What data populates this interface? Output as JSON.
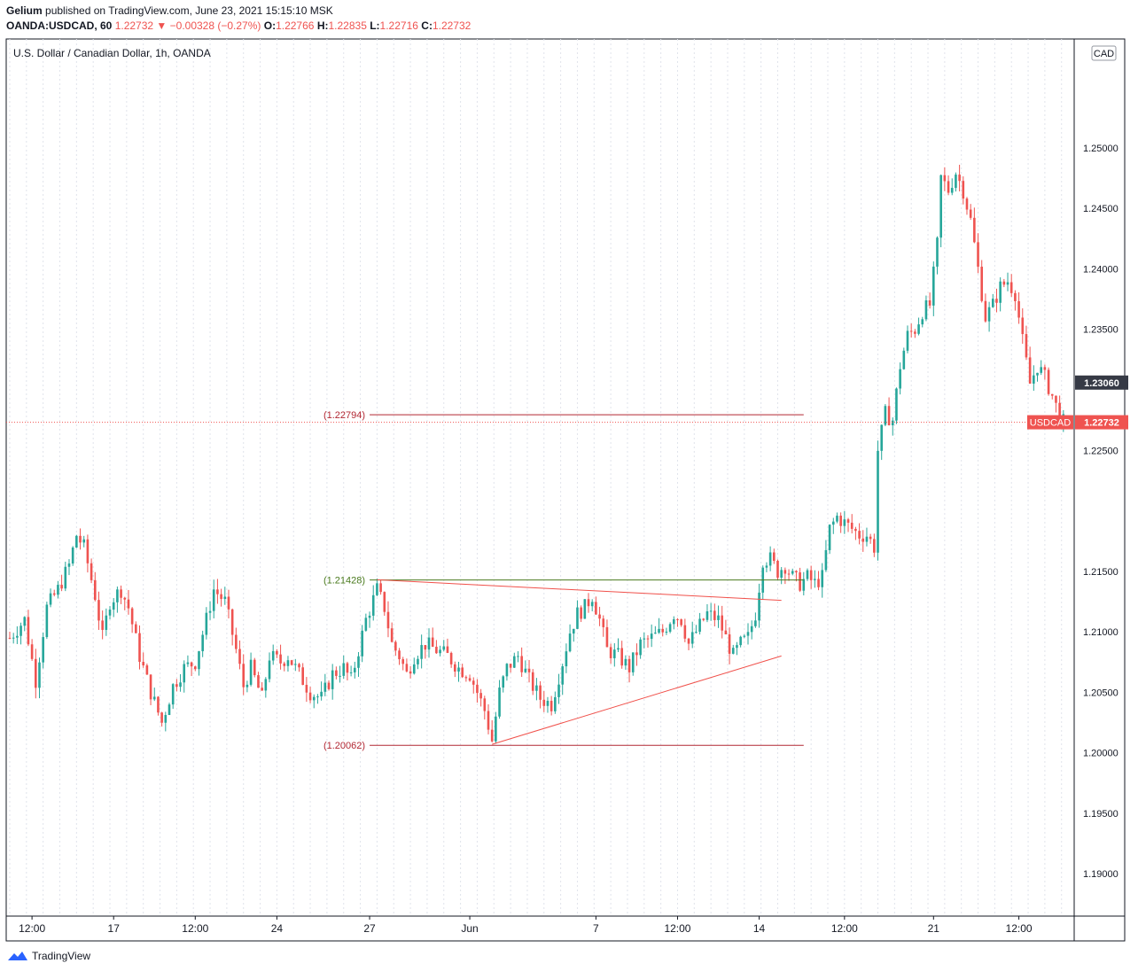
{
  "header": {
    "author": "Gelium",
    "published": "published on TradingView.com, June 23, 2021 15:15:10 MSK",
    "symbol": "OANDA:USDCAD, 60",
    "last": "1.22732",
    "change": "▼ −0.00328 (−0.27%)",
    "o_label": "O:",
    "o": "1.22766",
    "h_label": "H:",
    "h": "1.22835",
    "l_label": "L:",
    "l": "1.22716",
    "c_label": "C:",
    "c": "1.22732"
  },
  "legend": "U.S. Dollar / Canadian Dollar, 1h, OANDA",
  "footer": "TradingView",
  "colors": {
    "up": "#26a69a",
    "down": "#ef5350",
    "grid": "#e0e3eb",
    "level": "#b22833",
    "green_level": "#4a7a1e",
    "trend": "#f0504a"
  },
  "chart_data": {
    "type": "candlestick",
    "title": "U.S. Dollar / Canadian Dollar, 1h, OANDA",
    "currency": "CAD",
    "ylim": [
      1.1865,
      1.259
    ],
    "y_ticks": [
      1.19,
      1.195,
      1.2,
      1.205,
      1.21,
      1.215,
      1.2225,
      1.225,
      1.235,
      1.24,
      1.245,
      1.25
    ],
    "y_tick_labels": [
      "1.19000",
      "1.19500",
      "1.20000",
      "1.20500",
      "1.21000",
      "1.21500",
      "",
      "1.22500",
      "1.23500",
      "1.24000",
      "1.24500",
      "1.25000"
    ],
    "x_labels": [
      "12:00",
      "17",
      "12:00",
      "24",
      "27",
      "Jun",
      "7",
      "12:00",
      "14",
      "12:00",
      "21",
      "12:00"
    ],
    "x_label_index": [
      6,
      28,
      50,
      72,
      97,
      124,
      158,
      180,
      202,
      225,
      249,
      272
    ],
    "price_path": [
      [
        0,
        1.2095
      ],
      [
        4,
        1.211
      ],
      [
        7,
        1.206
      ],
      [
        10,
        1.212
      ],
      [
        13,
        1.2135
      ],
      [
        16,
        1.2155
      ],
      [
        18,
        1.218
      ],
      [
        20,
        1.217
      ],
      [
        23,
        1.213
      ],
      [
        25,
        1.2095
      ],
      [
        27,
        1.2125
      ],
      [
        30,
        1.2135
      ],
      [
        32,
        1.212
      ],
      [
        35,
        1.208
      ],
      [
        38,
        1.205
      ],
      [
        41,
        1.2025
      ],
      [
        44,
        1.2055
      ],
      [
        47,
        1.207
      ],
      [
        50,
        1.2075
      ],
      [
        53,
        1.211
      ],
      [
        55,
        1.2135
      ],
      [
        58,
        1.2125
      ],
      [
        61,
        1.2085
      ],
      [
        63,
        1.2055
      ],
      [
        65,
        1.207
      ],
      [
        68,
        1.2045
      ],
      [
        70,
        1.208
      ],
      [
        73,
        1.2075
      ],
      [
        75,
        1.208
      ],
      [
        78,
        1.2065
      ],
      [
        81,
        1.205
      ],
      [
        84,
        1.2045
      ],
      [
        87,
        1.2065
      ],
      [
        90,
        1.207
      ],
      [
        92,
        1.206
      ],
      [
        94,
        1.2085
      ],
      [
        96,
        1.211
      ],
      [
        99,
        1.2135
      ],
      [
        101,
        1.212
      ],
      [
        103,
        1.209
      ],
      [
        105,
        1.208
      ],
      [
        107,
        1.2065
      ],
      [
        109,
        1.208
      ],
      [
        112,
        1.209
      ],
      [
        115,
        1.2085
      ],
      [
        118,
        1.208
      ],
      [
        121,
        1.207
      ],
      [
        124,
        1.2065
      ],
      [
        126,
        1.205
      ],
      [
        128,
        1.2035
      ],
      [
        130,
        1.201
      ],
      [
        132,
        1.205
      ],
      [
        134,
        1.207
      ],
      [
        137,
        1.208
      ],
      [
        140,
        1.206
      ],
      [
        143,
        1.2045
      ],
      [
        146,
        1.204
      ],
      [
        149,
        1.2075
      ],
      [
        151,
        1.21
      ],
      [
        153,
        1.2115
      ],
      [
        155,
        1.212
      ],
      [
        157,
        1.213
      ],
      [
        159,
        1.211
      ],
      [
        161,
        1.2085
      ],
      [
        164,
        1.208
      ],
      [
        167,
        1.207
      ],
      [
        170,
        1.209
      ],
      [
        173,
        1.2095
      ],
      [
        176,
        1.21
      ],
      [
        179,
        1.2115
      ],
      [
        181,
        1.211
      ],
      [
        183,
        1.209
      ],
      [
        185,
        1.21
      ],
      [
        188,
        1.2115
      ],
      [
        191,
        1.211
      ],
      [
        193,
        1.2095
      ],
      [
        195,
        1.208
      ],
      [
        197,
        1.209
      ],
      [
        199,
        1.2095
      ],
      [
        201,
        1.2115
      ],
      [
        203,
        1.216
      ],
      [
        205,
        1.216
      ],
      [
        207,
        1.215
      ],
      [
        209,
        1.2155
      ],
      [
        211,
        1.2145
      ],
      [
        213,
        1.214
      ],
      [
        215,
        1.2145
      ],
      [
        217,
        1.214
      ],
      [
        219,
        1.2145
      ],
      [
        221,
        1.2185
      ],
      [
        223,
        1.2195
      ],
      [
        225,
        1.219
      ],
      [
        227,
        1.2185
      ],
      [
        229,
        1.218
      ],
      [
        231,
        1.218
      ],
      [
        233,
        1.217
      ],
      [
        234,
        1.225
      ],
      [
        236,
        1.228
      ],
      [
        238,
        1.2275
      ],
      [
        240,
        1.232
      ],
      [
        242,
        1.2345
      ],
      [
        244,
        1.235
      ],
      [
        246,
        1.2365
      ],
      [
        248,
        1.237
      ],
      [
        250,
        1.242
      ],
      [
        251,
        1.2475
      ],
      [
        253,
        1.2465
      ],
      [
        255,
        1.248
      ],
      [
        257,
        1.2465
      ],
      [
        259,
        1.244
      ],
      [
        261,
        1.24
      ],
      [
        263,
        1.236
      ],
      [
        265,
        1.237
      ],
      [
        267,
        1.2385
      ],
      [
        269,
        1.239
      ],
      [
        271,
        1.238
      ],
      [
        273,
        1.234
      ],
      [
        275,
        1.2305
      ],
      [
        277,
        1.232
      ],
      [
        279,
        1.231
      ],
      [
        281,
        1.2295
      ],
      [
        283,
        1.2278
      ],
      [
        284,
        1.22732
      ]
    ],
    "bar_count": 285,
    "levels": [
      {
        "label": "(1.22794)",
        "value": 1.22794,
        "from_index": 97,
        "to_index": 214
      },
      {
        "label": "(1.21428)",
        "value": 1.21428,
        "from_index": 97,
        "to_index": 214
      },
      {
        "label": "(1.20062)",
        "value": 1.20062,
        "from_index": 97,
        "to_index": 214
      }
    ],
    "trendlines": [
      {
        "x1": 99,
        "y1": 1.2143,
        "x2": 208,
        "y2": 1.2126
      },
      {
        "x1": 130,
        "y1": 1.2007,
        "x2": 208,
        "y2": 1.208
      }
    ],
    "last_close": 1.22732,
    "price_marker": {
      "label": "1.22732",
      "symbol": "USDCAD"
    },
    "crosshair_marker": {
      "label": "1.23060",
      "value": 1.2306
    }
  }
}
